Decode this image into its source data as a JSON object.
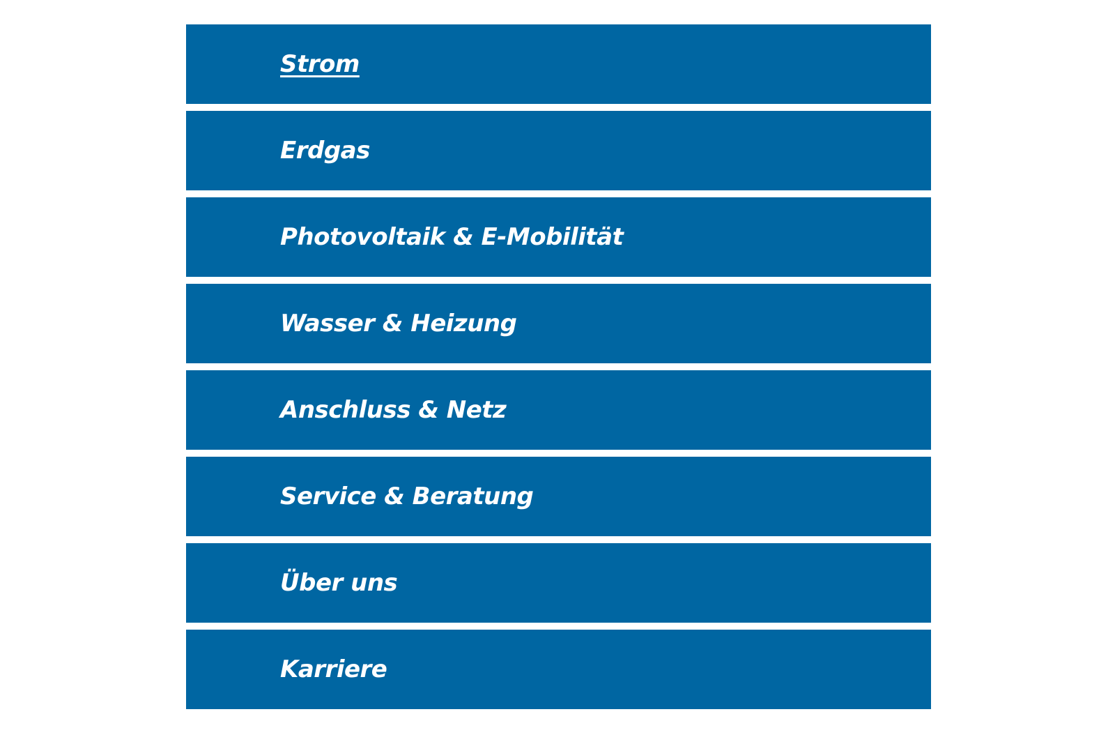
{
  "menu": {
    "color": "#0066a2",
    "active_index": 0,
    "items": [
      {
        "label": "Strom"
      },
      {
        "label": "Erdgas"
      },
      {
        "label": "Photovoltaik & E-Mobilität"
      },
      {
        "label": "Wasser & Heizung"
      },
      {
        "label": "Anschluss & Netz"
      },
      {
        "label": "Service & Beratung"
      },
      {
        "label": "Über uns"
      },
      {
        "label": "Karriere"
      }
    ]
  }
}
